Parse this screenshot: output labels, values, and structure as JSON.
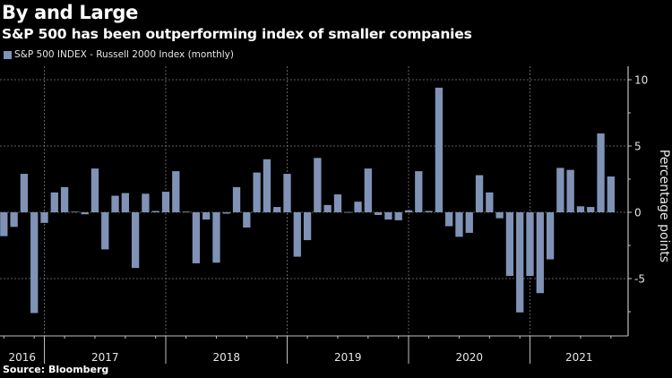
{
  "header": {
    "title": "By and Large",
    "subtitle": "S&P 500 has been outperforming index of smaller companies"
  },
  "legend": {
    "label": "S&P 500 INDEX - Russell 2000 Index (monthly)",
    "color": "#8093b6"
  },
  "footer": {
    "source": "Source: Bloomberg"
  },
  "colors": {
    "background": "#000000",
    "bar": "#8093b6",
    "axis": "#bfbfbf",
    "grid": "#7a7a7a",
    "text": "#ffffff"
  },
  "chart_data": {
    "type": "bar",
    "title": "By and Large",
    "subtitle": "S&P 500 has been outperforming index of smaller companies",
    "xlabel": "",
    "ylabel": "Percentage points",
    "ylim": [
      -9.2,
      10.9
    ],
    "yticks": [
      10,
      5,
      0,
      -5
    ],
    "ytick_labels": [
      "10",
      "5",
      "0",
      "-5"
    ],
    "grid": true,
    "legend_position": "top-left",
    "series": [
      {
        "name": "S&P 500 INDEX - Russell 2000 Index (monthly)",
        "start_month": "2016-08",
        "end_month": "2021-08",
        "values": [
          -1.8,
          -1.1,
          2.9,
          -7.6,
          -0.8,
          1.5,
          1.9,
          0.05,
          -0.15,
          3.3,
          -2.8,
          1.25,
          1.45,
          -4.2,
          1.4,
          0.1,
          1.55,
          3.1,
          0.05,
          -3.85,
          -0.55,
          -3.8,
          -0.1,
          1.9,
          -1.15,
          3.0,
          4.0,
          0.4,
          2.9,
          -3.35,
          -2.1,
          4.1,
          0.55,
          1.35,
          0.02,
          0.8,
          3.3,
          -0.2,
          -0.55,
          -0.6,
          0.15,
          3.1,
          0.1,
          9.4,
          -1.05,
          -1.85,
          -1.55,
          2.8,
          1.5,
          -0.45,
          -4.8,
          -7.55,
          -4.8,
          -6.1,
          -3.55,
          3.35,
          3.2,
          0.45,
          0.4,
          5.95,
          2.7
        ]
      }
    ],
    "x_year_labels": [
      "2016",
      "2017",
      "2018",
      "2019",
      "2020",
      "2021"
    ],
    "x_year_start_months": [
      "2016-08",
      "2017-01",
      "2018-01",
      "2019-01",
      "2020-01",
      "2021-01"
    ]
  }
}
